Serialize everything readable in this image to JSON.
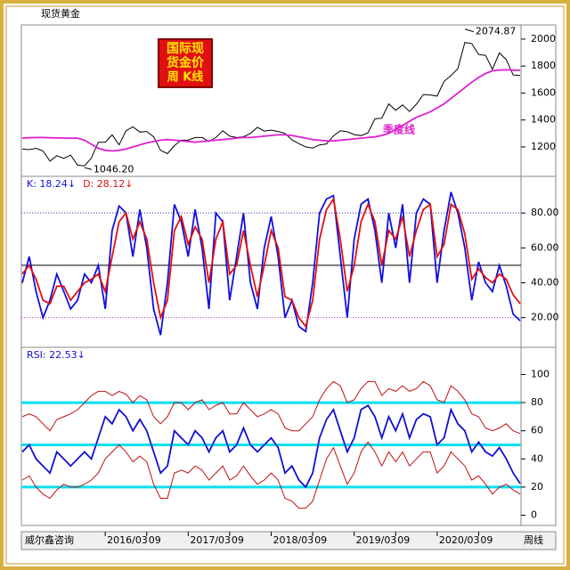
{
  "title": "现货黄金",
  "badge": [
    "国际现",
    "货金价",
    "周  K线"
  ],
  "footer": {
    "left": "威尔鑫咨询",
    "right": "周线"
  },
  "chart_data": [
    {
      "type": "line",
      "ylim": [
        995,
        2092
      ],
      "yticks": [
        1200,
        1400,
        1600,
        1800,
        2000
      ],
      "high_label": 2074.87,
      "low_label": {
        "value": 1046.2,
        "label": "1046.20"
      },
      "series": [
        {
          "color": "#000000",
          "values": [
            1185,
            1180,
            1190,
            1170,
            1095,
            1135,
            1115,
            1140,
            1065,
            1060,
            1118,
            1235,
            1235,
            1290,
            1215,
            1320,
            1350,
            1310,
            1315,
            1275,
            1175,
            1150,
            1210,
            1250,
            1250,
            1270,
            1270,
            1240,
            1270,
            1320,
            1280,
            1270,
            1275,
            1300,
            1345,
            1318,
            1325,
            1315,
            1300,
            1252,
            1224,
            1200,
            1192,
            1215,
            1222,
            1282,
            1320,
            1313,
            1292,
            1284,
            1305,
            1409,
            1413,
            1520,
            1472,
            1512,
            1463,
            1517,
            1589,
            1585,
            1577,
            1686,
            1730,
            1781,
            1975,
            1967,
            1886,
            1879,
            1776,
            1898,
            1847,
            1734,
            1730
          ]
        },
        {
          "name": "季度线",
          "color": "#e020d0",
          "values": [
            1266,
            1268,
            1270,
            1270,
            1268,
            1267,
            1266,
            1265,
            1265,
            1250,
            1220,
            1190,
            1175,
            1170,
            1175,
            1185,
            1200,
            1215,
            1230,
            1240,
            1250,
            1255,
            1250,
            1245,
            1240,
            1235,
            1240,
            1245,
            1250,
            1255,
            1260,
            1265,
            1270,
            1270,
            1275,
            1280,
            1285,
            1290,
            1290,
            1285,
            1275,
            1265,
            1255,
            1250,
            1245,
            1245,
            1250,
            1255,
            1260,
            1265,
            1270,
            1275,
            1285,
            1300,
            1330,
            1360,
            1390,
            1420,
            1440,
            1460,
            1490,
            1520,
            1560,
            1600,
            1640,
            1680,
            1715,
            1745,
            1765,
            1770,
            1772,
            1770,
            1768
          ]
        }
      ]
    },
    {
      "type": "line",
      "ylim": [
        4,
        100
      ],
      "yticks": [
        {
          "value": 20,
          "label": "20.00"
        },
        {
          "value": 40,
          "label": "40.00"
        },
        {
          "value": 60,
          "label": "60.00"
        },
        {
          "value": 80,
          "label": "80.00"
        }
      ],
      "reference_lines": [
        {
          "value": 80,
          "color": "#3030c0",
          "style": "dotted"
        },
        {
          "value": 50,
          "color": "#000000",
          "style": "solid"
        },
        {
          "value": 20,
          "color": "#c030c0",
          "style": "dotted"
        }
      ],
      "series": [
        {
          "name": "K: 18.24↓",
          "color": "#1010e0",
          "values": [
            40,
            55,
            35,
            20,
            30,
            45,
            35,
            25,
            30,
            45,
            40,
            50,
            25,
            70,
            84,
            80,
            55,
            82,
            60,
            25,
            10,
            40,
            85,
            75,
            55,
            82,
            60,
            25,
            80,
            75,
            30,
            55,
            80,
            40,
            25,
            60,
            78,
            55,
            20,
            30,
            15,
            12,
            40,
            80,
            88,
            90,
            55,
            20,
            65,
            85,
            88,
            70,
            40,
            80,
            60,
            85,
            40,
            80,
            88,
            85,
            40,
            70,
            92,
            80,
            60,
            30,
            52,
            40,
            35,
            50,
            38,
            22,
            18.24
          ]
        },
        {
          "name": "D: 28.12↓",
          "color": "#e01010",
          "values": [
            45,
            50,
            42,
            30,
            28,
            38,
            38,
            30,
            35,
            40,
            42,
            45,
            35,
            55,
            75,
            80,
            65,
            75,
            65,
            40,
            20,
            30,
            70,
            78,
            62,
            72,
            65,
            40,
            65,
            75,
            45,
            50,
            70,
            50,
            32,
            50,
            70,
            60,
            32,
            30,
            20,
            15,
            30,
            65,
            82,
            88,
            65,
            35,
            50,
            75,
            85,
            75,
            50,
            70,
            65,
            78,
            55,
            70,
            82,
            85,
            55,
            62,
            85,
            82,
            68,
            42,
            48,
            43,
            40,
            45,
            42,
            33,
            28.12
          ]
        }
      ]
    },
    {
      "type": "line",
      "ylim": [
        -6,
        118
      ],
      "yticks": [
        0,
        20,
        40,
        60,
        80,
        100
      ],
      "reference_lines": [
        {
          "value": 80,
          "color": "#00e0f0",
          "style": "thick"
        },
        {
          "value": 50,
          "color": "#00e0f0",
          "style": "thick"
        },
        {
          "value": 20,
          "color": "#00e0f0",
          "style": "thick"
        }
      ],
      "categories": [
        null,
        null,
        null,
        null,
        null,
        null,
        null,
        null,
        null,
        null,
        null,
        null,
        "2016/03",
        null,
        null,
        null,
        null,
        null,
        "09",
        null,
        null,
        null,
        null,
        null,
        "2017/03",
        null,
        null,
        null,
        null,
        null,
        "09",
        null,
        null,
        null,
        null,
        null,
        "2018/03",
        null,
        null,
        null,
        null,
        null,
        "09",
        null,
        null,
        null,
        null,
        null,
        "2019/03",
        null,
        null,
        null,
        null,
        null,
        "09",
        null,
        null,
        null,
        null,
        null,
        "2020/03",
        null,
        null,
        null,
        null,
        null,
        "09",
        null,
        null,
        null,
        null,
        null,
        null
      ],
      "series": [
        {
          "color": "#c01010",
          "values": [
            70,
            72,
            70,
            65,
            60,
            68,
            70,
            72,
            75,
            80,
            85,
            88,
            88,
            85,
            88,
            86,
            80,
            85,
            82,
            70,
            65,
            70,
            80,
            80,
            75,
            80,
            82,
            75,
            78,
            80,
            72,
            72,
            80,
            75,
            70,
            72,
            75,
            72,
            62,
            60,
            60,
            65,
            70,
            82,
            90,
            95,
            92,
            80,
            82,
            90,
            95,
            95,
            85,
            90,
            88,
            92,
            88,
            90,
            95,
            92,
            82,
            80,
            92,
            88,
            82,
            72,
            70,
            62,
            60,
            62,
            65,
            60,
            58
          ]
        },
        {
          "color": "#c01010",
          "values": [
            25,
            28,
            20,
            15,
            12,
            18,
            22,
            20,
            20,
            22,
            25,
            30,
            40,
            45,
            50,
            45,
            38,
            42,
            38,
            22,
            12,
            12,
            30,
            32,
            30,
            35,
            32,
            25,
            30,
            35,
            25,
            28,
            35,
            28,
            22,
            25,
            30,
            25,
            12,
            10,
            5,
            5,
            10,
            25,
            40,
            48,
            35,
            22,
            30,
            45,
            52,
            45,
            35,
            45,
            38,
            45,
            35,
            40,
            45,
            45,
            30,
            35,
            45,
            40,
            35,
            25,
            28,
            22,
            15,
            20,
            22,
            18,
            15
          ]
        },
        {
          "name": "RSI: 22.53↓",
          "color": "#1010d0",
          "values": [
            45,
            50,
            40,
            35,
            30,
            45,
            40,
            35,
            40,
            45,
            40,
            55,
            70,
            65,
            75,
            70,
            60,
            68,
            60,
            45,
            30,
            35,
            60,
            55,
            50,
            60,
            55,
            45,
            55,
            60,
            45,
            50,
            62,
            50,
            45,
            50,
            55,
            48,
            30,
            35,
            25,
            20,
            30,
            55,
            68,
            75,
            60,
            45,
            55,
            75,
            78,
            70,
            55,
            70,
            60,
            72,
            55,
            68,
            72,
            70,
            50,
            55,
            75,
            65,
            60,
            45,
            52,
            45,
            42,
            48,
            40,
            30,
            22.53
          ]
        }
      ]
    }
  ]
}
